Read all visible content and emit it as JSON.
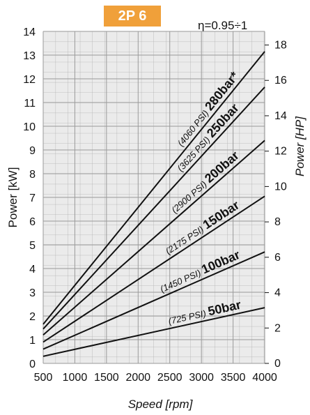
{
  "header": {
    "badge": "2P 6",
    "efficiency": "η=0.95÷1"
  },
  "chart_data": {
    "type": "line",
    "xlabel": "Speed [rpm]",
    "ylabel": "Power [kW]",
    "ylabel_right": "Power [HP]",
    "xlim": [
      500,
      4000
    ],
    "ylim": [
      0,
      14
    ],
    "ylim_right": [
      0,
      18.77
    ],
    "xticks": [
      500,
      1000,
      1500,
      2000,
      2500,
      3000,
      3500,
      4000
    ],
    "xtick_labels": [
      "500",
      "1000",
      "1500",
      "2000",
      "2500",
      "3000",
      "3500",
      "4000"
    ],
    "yticks": [
      0,
      1,
      2,
      3,
      4,
      5,
      6,
      7,
      8,
      9,
      10,
      11,
      12,
      13,
      14
    ],
    "ytick_labels": [
      "0",
      "1",
      "2",
      "3",
      "4",
      "5",
      "6",
      "7",
      "8",
      "9",
      "10",
      "11",
      "12",
      "13",
      "14"
    ],
    "yticks_right": [
      0,
      2,
      4,
      6,
      8,
      10,
      12,
      14,
      16,
      18
    ],
    "ytick_labels_right": [
      "0",
      "2",
      "4",
      "6",
      "8",
      "10",
      "12",
      "14",
      "16",
      "18"
    ],
    "grid": true,
    "series": [
      {
        "name": "50bar",
        "psi": "(725 PSI)",
        "x": [
          500,
          4000
        ],
        "values": [
          0.3,
          2.35
        ]
      },
      {
        "name": "100bar",
        "psi": "(1450 PSI)",
        "x": [
          500,
          4000
        ],
        "values": [
          0.6,
          4.7
        ]
      },
      {
        "name": "150bar",
        "psi": "(2175 PSI)",
        "x": [
          500,
          4000
        ],
        "values": [
          0.9,
          7.05
        ]
      },
      {
        "name": "200bar",
        "psi": "(2900 PSI)",
        "x": [
          500,
          4000
        ],
        "values": [
          1.2,
          9.4
        ]
      },
      {
        "name": "250bar",
        "psi": "(3625 PSI)",
        "x": [
          500,
          4000
        ],
        "values": [
          1.45,
          11.65
        ]
      },
      {
        "name": "280bar*",
        "psi": "(4060 PSI)",
        "x": [
          500,
          4000
        ],
        "values": [
          1.65,
          13.15
        ]
      }
    ]
  }
}
